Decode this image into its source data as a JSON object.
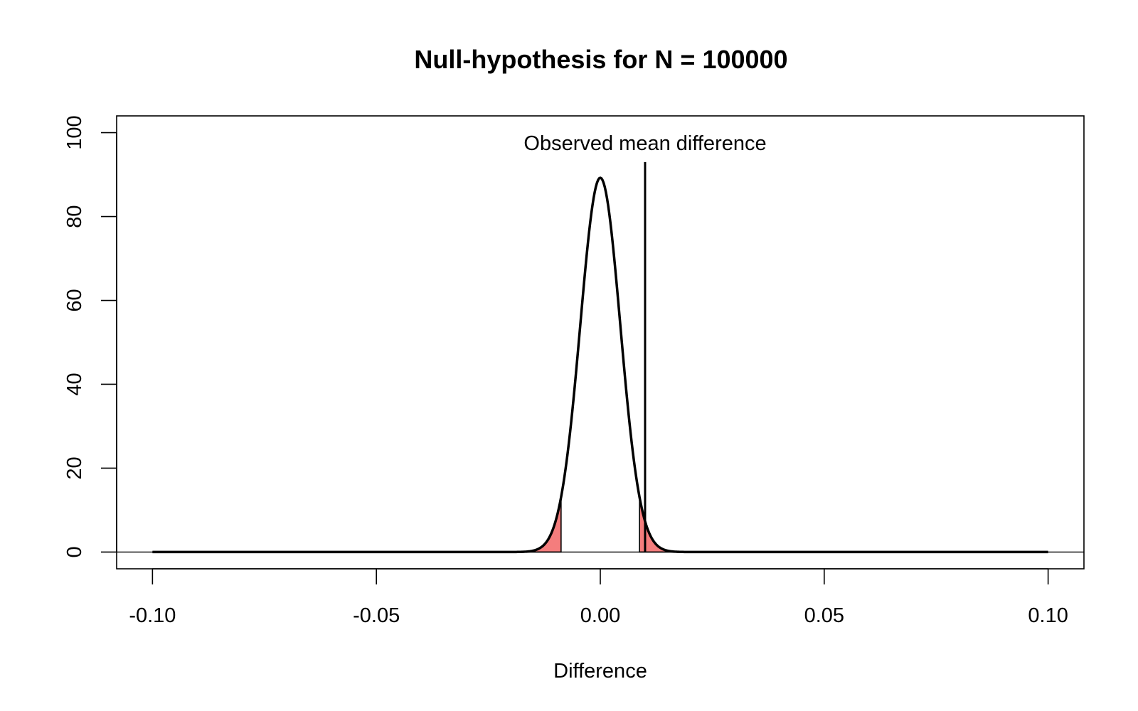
{
  "chart_data": {
    "type": "line",
    "title": "Null-hypothesis for N =  100000",
    "xlabel": "Difference",
    "ylabel": "",
    "xlim": [
      -0.108,
      0.108
    ],
    "ylim": [
      -4,
      104
    ],
    "grid": false,
    "legend": "none",
    "x_ticks": [
      -0.1,
      -0.05,
      0.0,
      0.05,
      0.1
    ],
    "x_tick_labels": [
      "-0.10",
      "-0.05",
      "0.00",
      "0.05",
      "0.10"
    ],
    "y_ticks": [
      0,
      20,
      40,
      60,
      80,
      100
    ],
    "y_tick_labels": [
      "0",
      "20",
      "40",
      "60",
      "80",
      "100"
    ],
    "series": [
      {
        "curve": "normal-density",
        "mean": 0.0,
        "sd": 0.00447,
        "x_range": [
          -0.1,
          0.1
        ],
        "color": "#000000"
      }
    ],
    "shaded_tails": {
      "lower_x": -0.00876,
      "upper_x": 0.00876,
      "color": "#f47d7d"
    },
    "baseline_y": 0,
    "observed_line": {
      "x": 0.01,
      "y_top": 93,
      "label": "Observed mean difference",
      "color": "#000000"
    }
  }
}
